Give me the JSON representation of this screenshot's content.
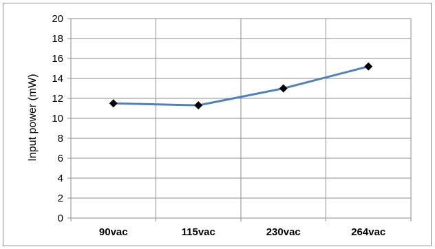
{
  "chart_data": {
    "type": "line",
    "categories": [
      "90vac",
      "115vac",
      "230vac",
      "264vac"
    ],
    "series": [
      {
        "values": [
          11.5,
          11.3,
          13.0,
          15.2
        ],
        "color": "#4f81bd",
        "marker": "diamond",
        "marker_color": "#000000"
      }
    ],
    "title": "",
    "xlabel": "",
    "ylabel": "Input power (mW)",
    "ylim": [
      0,
      20
    ],
    "yticks": [
      "0",
      "2",
      "4",
      "6",
      "8",
      "10",
      "12",
      "14",
      "16",
      "18",
      "20"
    ],
    "grid": true,
    "legend": "none"
  }
}
